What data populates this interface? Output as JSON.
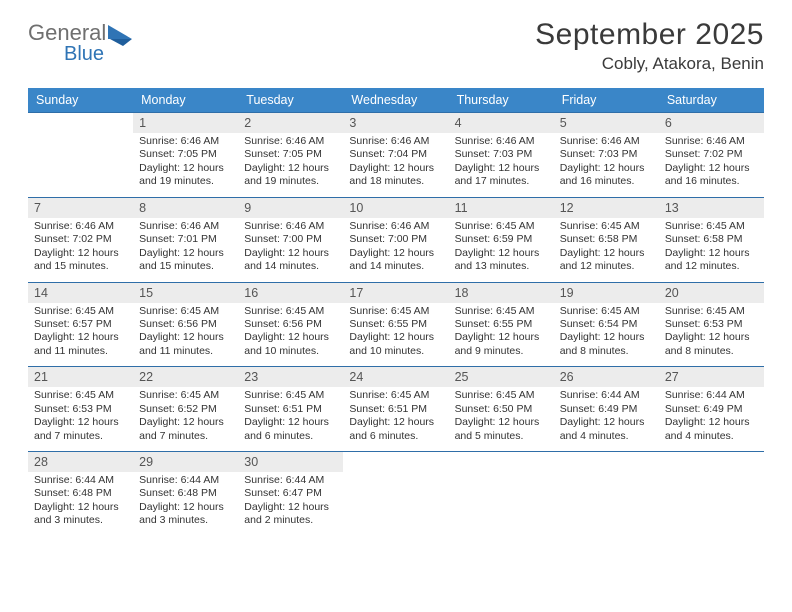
{
  "brand": {
    "word1": "General",
    "word2": "Blue"
  },
  "colors": {
    "header_bg": "#3a86c8",
    "week_rule": "#2f6ea8",
    "daynum_bg": "#ececec",
    "logo_gray": "#6f6f6f",
    "logo_blue": "#2f74b5",
    "text_dark": "#3a3a3a"
  },
  "header": {
    "month_title": "September 2025",
    "location": "Cobly, Atakora, Benin"
  },
  "dow": [
    "Sunday",
    "Monday",
    "Tuesday",
    "Wednesday",
    "Thursday",
    "Friday",
    "Saturday"
  ],
  "weeks": [
    [
      {
        "n": "",
        "sunrise": "",
        "sunset": "",
        "daylight": ""
      },
      {
        "n": "1",
        "sunrise": "Sunrise: 6:46 AM",
        "sunset": "Sunset: 7:05 PM",
        "daylight": "Daylight: 12 hours and 19 minutes."
      },
      {
        "n": "2",
        "sunrise": "Sunrise: 6:46 AM",
        "sunset": "Sunset: 7:05 PM",
        "daylight": "Daylight: 12 hours and 19 minutes."
      },
      {
        "n": "3",
        "sunrise": "Sunrise: 6:46 AM",
        "sunset": "Sunset: 7:04 PM",
        "daylight": "Daylight: 12 hours and 18 minutes."
      },
      {
        "n": "4",
        "sunrise": "Sunrise: 6:46 AM",
        "sunset": "Sunset: 7:03 PM",
        "daylight": "Daylight: 12 hours and 17 minutes."
      },
      {
        "n": "5",
        "sunrise": "Sunrise: 6:46 AM",
        "sunset": "Sunset: 7:03 PM",
        "daylight": "Daylight: 12 hours and 16 minutes."
      },
      {
        "n": "6",
        "sunrise": "Sunrise: 6:46 AM",
        "sunset": "Sunset: 7:02 PM",
        "daylight": "Daylight: 12 hours and 16 minutes."
      }
    ],
    [
      {
        "n": "7",
        "sunrise": "Sunrise: 6:46 AM",
        "sunset": "Sunset: 7:02 PM",
        "daylight": "Daylight: 12 hours and 15 minutes."
      },
      {
        "n": "8",
        "sunrise": "Sunrise: 6:46 AM",
        "sunset": "Sunset: 7:01 PM",
        "daylight": "Daylight: 12 hours and 15 minutes."
      },
      {
        "n": "9",
        "sunrise": "Sunrise: 6:46 AM",
        "sunset": "Sunset: 7:00 PM",
        "daylight": "Daylight: 12 hours and 14 minutes."
      },
      {
        "n": "10",
        "sunrise": "Sunrise: 6:46 AM",
        "sunset": "Sunset: 7:00 PM",
        "daylight": "Daylight: 12 hours and 14 minutes."
      },
      {
        "n": "11",
        "sunrise": "Sunrise: 6:45 AM",
        "sunset": "Sunset: 6:59 PM",
        "daylight": "Daylight: 12 hours and 13 minutes."
      },
      {
        "n": "12",
        "sunrise": "Sunrise: 6:45 AM",
        "sunset": "Sunset: 6:58 PM",
        "daylight": "Daylight: 12 hours and 12 minutes."
      },
      {
        "n": "13",
        "sunrise": "Sunrise: 6:45 AM",
        "sunset": "Sunset: 6:58 PM",
        "daylight": "Daylight: 12 hours and 12 minutes."
      }
    ],
    [
      {
        "n": "14",
        "sunrise": "Sunrise: 6:45 AM",
        "sunset": "Sunset: 6:57 PM",
        "daylight": "Daylight: 12 hours and 11 minutes."
      },
      {
        "n": "15",
        "sunrise": "Sunrise: 6:45 AM",
        "sunset": "Sunset: 6:56 PM",
        "daylight": "Daylight: 12 hours and 11 minutes."
      },
      {
        "n": "16",
        "sunrise": "Sunrise: 6:45 AM",
        "sunset": "Sunset: 6:56 PM",
        "daylight": "Daylight: 12 hours and 10 minutes."
      },
      {
        "n": "17",
        "sunrise": "Sunrise: 6:45 AM",
        "sunset": "Sunset: 6:55 PM",
        "daylight": "Daylight: 12 hours and 10 minutes."
      },
      {
        "n": "18",
        "sunrise": "Sunrise: 6:45 AM",
        "sunset": "Sunset: 6:55 PM",
        "daylight": "Daylight: 12 hours and 9 minutes."
      },
      {
        "n": "19",
        "sunrise": "Sunrise: 6:45 AM",
        "sunset": "Sunset: 6:54 PM",
        "daylight": "Daylight: 12 hours and 8 minutes."
      },
      {
        "n": "20",
        "sunrise": "Sunrise: 6:45 AM",
        "sunset": "Sunset: 6:53 PM",
        "daylight": "Daylight: 12 hours and 8 minutes."
      }
    ],
    [
      {
        "n": "21",
        "sunrise": "Sunrise: 6:45 AM",
        "sunset": "Sunset: 6:53 PM",
        "daylight": "Daylight: 12 hours and 7 minutes."
      },
      {
        "n": "22",
        "sunrise": "Sunrise: 6:45 AM",
        "sunset": "Sunset: 6:52 PM",
        "daylight": "Daylight: 12 hours and 7 minutes."
      },
      {
        "n": "23",
        "sunrise": "Sunrise: 6:45 AM",
        "sunset": "Sunset: 6:51 PM",
        "daylight": "Daylight: 12 hours and 6 minutes."
      },
      {
        "n": "24",
        "sunrise": "Sunrise: 6:45 AM",
        "sunset": "Sunset: 6:51 PM",
        "daylight": "Daylight: 12 hours and 6 minutes."
      },
      {
        "n": "25",
        "sunrise": "Sunrise: 6:45 AM",
        "sunset": "Sunset: 6:50 PM",
        "daylight": "Daylight: 12 hours and 5 minutes."
      },
      {
        "n": "26",
        "sunrise": "Sunrise: 6:44 AM",
        "sunset": "Sunset: 6:49 PM",
        "daylight": "Daylight: 12 hours and 4 minutes."
      },
      {
        "n": "27",
        "sunrise": "Sunrise: 6:44 AM",
        "sunset": "Sunset: 6:49 PM",
        "daylight": "Daylight: 12 hours and 4 minutes."
      }
    ],
    [
      {
        "n": "28",
        "sunrise": "Sunrise: 6:44 AM",
        "sunset": "Sunset: 6:48 PM",
        "daylight": "Daylight: 12 hours and 3 minutes."
      },
      {
        "n": "29",
        "sunrise": "Sunrise: 6:44 AM",
        "sunset": "Sunset: 6:48 PM",
        "daylight": "Daylight: 12 hours and 3 minutes."
      },
      {
        "n": "30",
        "sunrise": "Sunrise: 6:44 AM",
        "sunset": "Sunset: 6:47 PM",
        "daylight": "Daylight: 12 hours and 2 minutes."
      },
      {
        "n": "",
        "sunrise": "",
        "sunset": "",
        "daylight": ""
      },
      {
        "n": "",
        "sunrise": "",
        "sunset": "",
        "daylight": ""
      },
      {
        "n": "",
        "sunrise": "",
        "sunset": "",
        "daylight": ""
      },
      {
        "n": "",
        "sunrise": "",
        "sunset": "",
        "daylight": ""
      }
    ]
  ]
}
